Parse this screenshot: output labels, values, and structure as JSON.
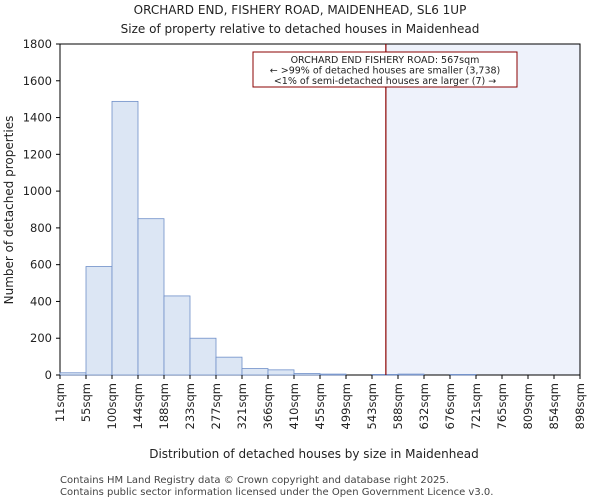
{
  "chart_data": {
    "type": "bar",
    "title": "ORCHARD END, FISHERY ROAD, MAIDENHEAD, SL6 1UP",
    "subtitle": "Size of property relative to detached houses in Maidenhead",
    "xlabel": "Distribution of detached houses by size in Maidenhead",
    "ylabel": "Number of detached properties",
    "categories": [
      "11sqm",
      "55sqm",
      "100sqm",
      "144sqm",
      "188sqm",
      "233sqm",
      "277sqm",
      "321sqm",
      "366sqm",
      "410sqm",
      "455sqm",
      "499sqm",
      "543sqm",
      "588sqm",
      "632sqm",
      "676sqm",
      "721sqm",
      "765sqm",
      "809sqm",
      "854sqm",
      "898sqm"
    ],
    "bin_edges": [
      11,
      55,
      100,
      144,
      188,
      233,
      277,
      321,
      366,
      410,
      455,
      499,
      543,
      588,
      632,
      676,
      721,
      765,
      809,
      854,
      898
    ],
    "values": [
      12,
      590,
      1488,
      850,
      430,
      200,
      97,
      35,
      28,
      8,
      5,
      0,
      3,
      5,
      0,
      3,
      0,
      0,
      0,
      0,
      0
    ],
    "yticks": [
      0,
      200,
      400,
      600,
      800,
      1000,
      1200,
      1400,
      1600,
      1800
    ],
    "ylim": [
      0,
      1800
    ],
    "grid": false,
    "marker": {
      "value": 567,
      "label": "ORCHARD END FISHERY ROAD: 567sqm",
      "line2": "← >99% of detached houses are smaller (3,738)",
      "line3": "<1% of semi-detached houses are larger (7) →",
      "color": "#8b0000"
    },
    "bar_color": "#dce6f4",
    "bar_edge": "#6f8fc9",
    "shade_color": "#eef2fb"
  },
  "footer": {
    "line1": "Contains HM Land Registry data © Crown copyright and database right 2025.",
    "line2": "Contains public sector information licensed under the Open Government Licence v3.0."
  }
}
